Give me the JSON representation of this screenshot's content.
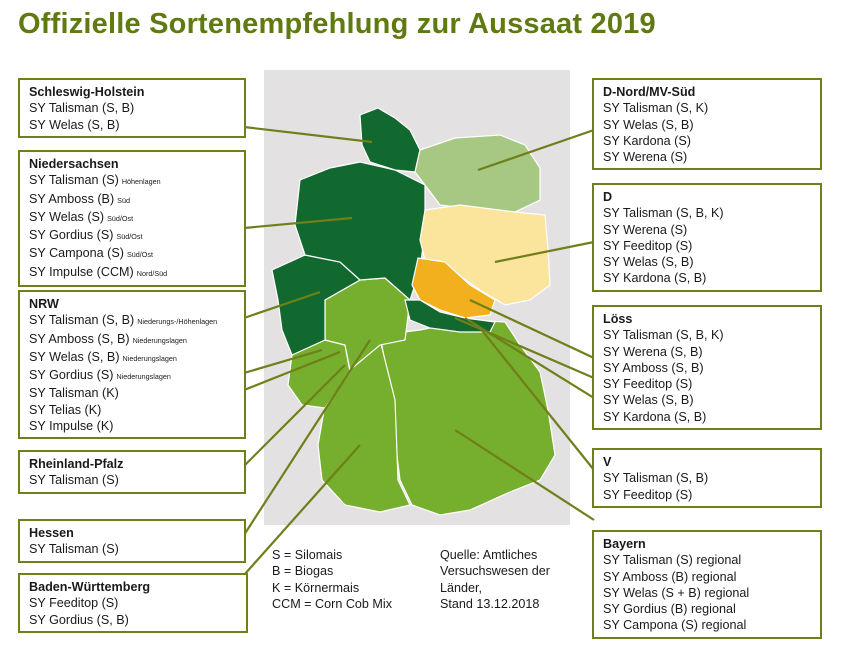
{
  "title": "Offizielle Sortenempfehlung zur Aussaat 2019",
  "colors": {
    "title": "#5f7a10",
    "box_border": "#6f7f1a",
    "dark_green": "#12692f",
    "mid_green": "#76ae2e",
    "light_green": "#a6c882",
    "light_yellow": "#fbe49b",
    "orange": "#f2b01f",
    "map_background": "#e4e1e2"
  },
  "boxes": {
    "sh": {
      "name": "Schleswig-Holstein",
      "items": [
        {
          "text": "SY Talisman (S, B)",
          "note": ""
        },
        {
          "text": "SY Welas (S, B)",
          "note": ""
        }
      ]
    },
    "ns": {
      "name": "Niedersachsen",
      "items": [
        {
          "text": "SY Talisman (S)",
          "note": "Höhenlagen"
        },
        {
          "text": "SY Amboss (B)",
          "note": "Süd"
        },
        {
          "text": "SY Welas (S)",
          "note": "Süd/Ost"
        },
        {
          "text": "SY Gordius (S)",
          "note": "Süd/Ost"
        },
        {
          "text": "SY Campona (S)",
          "note": "Süd/Ost"
        },
        {
          "text": "SY Impulse (CCM)",
          "note": "Nord/Süd"
        }
      ]
    },
    "nrw": {
      "name": "NRW",
      "items": [
        {
          "text": "SY Talisman (S, B)",
          "note": "Niederungs-/Höhenlagen"
        },
        {
          "text": "SY Amboss (S, B)",
          "note": "Niederungslagen"
        },
        {
          "text": "SY Welas (S, B)",
          "note": "Niederungslagen"
        },
        {
          "text": "SY Gordius (S)",
          "note": "Niederungslagen"
        },
        {
          "text": "SY Talisman (K)",
          "note": ""
        },
        {
          "text": "SY Telias (K)",
          "note": ""
        },
        {
          "text": "SY Impulse (K)",
          "note": ""
        }
      ]
    },
    "rp": {
      "name": "Rheinland-Pfalz",
      "items": [
        {
          "text": "SY Talisman (S)",
          "note": ""
        }
      ]
    },
    "he": {
      "name": "Hessen",
      "items": [
        {
          "text": "SY Talisman (S)",
          "note": ""
        }
      ]
    },
    "bw": {
      "name": "Baden-Württemberg",
      "items": [
        {
          "text": "SY Feeditop (S)",
          "note": ""
        },
        {
          "text": "SY Gordius (S, B)",
          "note": ""
        }
      ]
    },
    "dn": {
      "name": "D-Nord/MV-Süd",
      "items": [
        {
          "text": "SY Talisman (S, K)",
          "note": ""
        },
        {
          "text": "SY Welas (S, B)",
          "note": ""
        },
        {
          "text": "SY Kardona (S)",
          "note": ""
        },
        {
          "text": "SY Werena (S)",
          "note": ""
        }
      ]
    },
    "d": {
      "name": "D",
      "items": [
        {
          "text": "SY Talisman (S, B, K)",
          "note": ""
        },
        {
          "text": "SY Werena (S)",
          "note": ""
        },
        {
          "text": "SY Feeditop (S)",
          "note": ""
        },
        {
          "text": "SY Welas (S, B)",
          "note": ""
        },
        {
          "text": "SY Kardona (S, B)",
          "note": ""
        }
      ]
    },
    "loess": {
      "name": "Löss",
      "items": [
        {
          "text": "SY Talisman (S, B, K)",
          "note": ""
        },
        {
          "text": "SY Werena (S, B)",
          "note": ""
        },
        {
          "text": "SY Amboss (S, B)",
          "note": ""
        },
        {
          "text": "SY Feeditop (S)",
          "note": ""
        },
        {
          "text": "SY Welas (S, B)",
          "note": ""
        },
        {
          "text": "SY Kardona (S, B)",
          "note": ""
        }
      ]
    },
    "v": {
      "name": "V",
      "items": [
        {
          "text": "SY Talisman (S, B)",
          "note": ""
        },
        {
          "text": "SY Feeditop (S)",
          "note": ""
        }
      ]
    },
    "by": {
      "name": "Bayern",
      "items": [
        {
          "text": "SY Talisman (S) regional",
          "note": ""
        },
        {
          "text": "SY Amboss (B) regional",
          "note": ""
        },
        {
          "text": "SY Welas (S + B) regional",
          "note": ""
        },
        {
          "text": "SY Gordius (B) regional",
          "note": ""
        },
        {
          "text": "SY Campona (S) regional",
          "note": ""
        }
      ]
    }
  },
  "legend": [
    "S = Silomais",
    "B = Biogas",
    "K = Körnermais",
    "CCM = Corn Cob Mix"
  ],
  "source": [
    "Quelle: Amtliches",
    "Versuchswesen der",
    "Länder,",
    "Stand 13.12.2018"
  ]
}
